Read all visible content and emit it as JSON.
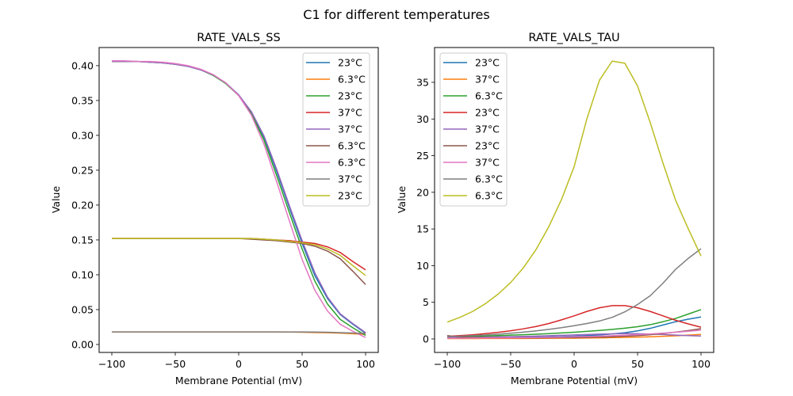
{
  "chart_data": {
    "suptitle": "C1 for different temperatures",
    "colors": [
      "#1f77b4",
      "#ff7f0e",
      "#2ca02c",
      "#d62728",
      "#9467bd",
      "#8c564b",
      "#e377c2",
      "#7f7f7f",
      "#bcbd22"
    ],
    "x": [
      -100,
      -90,
      -80,
      -70,
      -60,
      -50,
      -40,
      -30,
      -20,
      -10,
      0,
      10,
      20,
      30,
      40,
      50,
      60,
      70,
      80,
      90,
      100
    ],
    "charts": [
      {
        "type": "line",
        "title": "RATE_VALS_SS",
        "xlabel": "Membrane Potential (mV)",
        "ylabel": "Value",
        "xlim": [
          -110,
          110
        ],
        "ylim": [
          -0.0114,
          0.426
        ],
        "xticks": [
          -100,
          -50,
          0,
          50,
          100
        ],
        "xtick_labels": [
          "−100",
          "−50",
          "0",
          "50",
          "100"
        ],
        "yticks": [
          0.0,
          0.05,
          0.1,
          0.15,
          0.2,
          0.25,
          0.3,
          0.35,
          0.4
        ],
        "ytick_labels": [
          "0.00",
          "0.05",
          "0.10",
          "0.15",
          "0.20",
          "0.25",
          "0.30",
          "0.35",
          "0.40"
        ],
        "grid": false,
        "legend_position": "upper-right",
        "series": [
          {
            "name": "23°C",
            "values": [
              0.406,
              0.406,
              0.406,
              0.405,
              0.404,
              0.402,
              0.399,
              0.394,
              0.386,
              0.375,
              0.358,
              0.333,
              0.297,
              0.248,
              0.196,
              0.145,
              0.099,
              0.066,
              0.043,
              0.029,
              0.016
            ]
          },
          {
            "name": "6.3°C",
            "values": [
              0.018,
              0.018,
              0.018,
              0.018,
              0.018,
              0.018,
              0.018,
              0.018,
              0.018,
              0.018,
              0.018,
              0.018,
              0.018,
              0.018,
              0.0178,
              0.0175,
              0.0172,
              0.0168,
              0.0163,
              0.0155,
              0.0145
            ]
          },
          {
            "name": "23°C",
            "values": [
              0.406,
              0.406,
              0.406,
              0.405,
              0.404,
              0.402,
              0.399,
              0.394,
              0.386,
              0.374,
              0.357,
              0.331,
              0.293,
              0.242,
              0.189,
              0.137,
              0.091,
              0.058,
              0.036,
              0.024,
              0.013
            ]
          },
          {
            "name": "37°C",
            "values": [
              0.152,
              0.152,
              0.152,
              0.152,
              0.152,
              0.152,
              0.152,
              0.152,
              0.152,
              0.152,
              0.152,
              0.152,
              0.151,
              0.15,
              0.149,
              0.147,
              0.145,
              0.14,
              0.132,
              0.119,
              0.107
            ]
          },
          {
            "name": "37°C",
            "values": [
              0.406,
              0.406,
              0.406,
              0.405,
              0.404,
              0.402,
              0.399,
              0.394,
              0.387,
              0.375,
              0.358,
              0.334,
              0.299,
              0.251,
              0.199,
              0.149,
              0.103,
              0.068,
              0.044,
              0.03,
              0.017
            ]
          },
          {
            "name": "6.3°C",
            "values": [
              0.152,
              0.152,
              0.152,
              0.152,
              0.152,
              0.152,
              0.152,
              0.152,
              0.152,
              0.152,
              0.152,
              0.151,
              0.15,
              0.149,
              0.147,
              0.145,
              0.141,
              0.134,
              0.123,
              0.105,
              0.086
            ]
          },
          {
            "name": "6.3°C",
            "values": [
              0.407,
              0.407,
              0.406,
              0.406,
              0.405,
              0.403,
              0.4,
              0.395,
              0.387,
              0.375,
              0.357,
              0.329,
              0.287,
              0.233,
              0.177,
              0.122,
              0.078,
              0.048,
              0.029,
              0.019,
              0.01
            ]
          },
          {
            "name": "37°C",
            "values": [
              0.018,
              0.018,
              0.018,
              0.018,
              0.018,
              0.018,
              0.018,
              0.018,
              0.018,
              0.018,
              0.018,
              0.018,
              0.018,
              0.018,
              0.018,
              0.018,
              0.0178,
              0.0175,
              0.017,
              0.0165,
              0.016
            ]
          },
          {
            "name": "23°C",
            "values": [
              0.152,
              0.152,
              0.152,
              0.152,
              0.152,
              0.152,
              0.152,
              0.152,
              0.152,
              0.152,
              0.152,
              0.152,
              0.151,
              0.15,
              0.148,
              0.146,
              0.143,
              0.137,
              0.128,
              0.113,
              0.099
            ]
          }
        ]
      },
      {
        "type": "line",
        "title": "RATE_VALS_TAU",
        "xlabel": "Membrane Potential (mV)",
        "ylabel": "Value",
        "xlim": [
          -110,
          110
        ],
        "ylim": [
          -1.84,
          39.75
        ],
        "xticks": [
          -100,
          -50,
          0,
          50,
          100
        ],
        "xtick_labels": [
          "−100",
          "−50",
          "0",
          "50",
          "100"
        ],
        "yticks": [
          0,
          5,
          10,
          15,
          20,
          25,
          30,
          35
        ],
        "ytick_labels": [
          "0",
          "5",
          "10",
          "15",
          "20",
          "25",
          "30",
          "35"
        ],
        "grid": false,
        "legend_position": "upper-left",
        "series": [
          {
            "name": "23°C",
            "values": [
              0.15,
              0.16,
              0.17,
              0.18,
              0.19,
              0.2,
              0.22,
              0.25,
              0.28,
              0.32,
              0.38,
              0.45,
              0.55,
              0.68,
              0.85,
              1.1,
              1.45,
              1.9,
              2.35,
              2.7,
              3.0
            ]
          },
          {
            "name": "37°C",
            "values": [
              0.05,
              0.05,
              0.05,
              0.06,
              0.06,
              0.07,
              0.07,
              0.08,
              0.09,
              0.1,
              0.11,
              0.13,
              0.15,
              0.18,
              0.21,
              0.25,
              0.3,
              0.36,
              0.43,
              0.52,
              0.62
            ]
          },
          {
            "name": "6.3°C",
            "values": [
              0.3,
              0.33,
              0.37,
              0.41,
              0.46,
              0.52,
              0.58,
              0.65,
              0.73,
              0.82,
              0.92,
              1.03,
              1.16,
              1.3,
              1.47,
              1.67,
              1.95,
              2.35,
              2.8,
              3.4,
              4.0
            ]
          },
          {
            "name": "23°C",
            "values": [
              0.35,
              0.45,
              0.57,
              0.72,
              0.9,
              1.12,
              1.38,
              1.7,
              2.1,
              2.6,
              3.15,
              3.75,
              4.25,
              4.55,
              4.55,
              4.25,
              3.75,
              3.15,
              2.55,
              2.05,
              1.6
            ]
          },
          {
            "name": "37°C",
            "values": [
              0.18,
              0.2,
              0.22,
              0.25,
              0.28,
              0.31,
              0.35,
              0.39,
              0.44,
              0.49,
              0.55,
              0.6,
              0.66,
              0.7,
              0.72,
              0.71,
              0.67,
              0.6,
              0.52,
              0.45,
              0.4
            ]
          },
          {
            "name": "23°C",
            "values": [
              0.45,
              0.25,
              0.2,
              0.18,
              0.16,
              0.15,
              0.15,
              0.15,
              0.16,
              0.17,
              0.19,
              0.21,
              0.25,
              0.3,
              0.37,
              0.46,
              0.58,
              0.74,
              0.93,
              1.15,
              1.4
            ]
          },
          {
            "name": "37°C",
            "values": [
              0.1,
              0.11,
              0.12,
              0.13,
              0.14,
              0.15,
              0.17,
              0.19,
              0.22,
              0.25,
              0.29,
              0.33,
              0.38,
              0.44,
              0.51,
              0.59,
              0.68,
              0.79,
              0.91,
              1.05,
              1.2
            ]
          },
          {
            "name": "6.3°C",
            "values": [
              0.3,
              0.37,
              0.45,
              0.54,
              0.65,
              0.78,
              0.93,
              1.1,
              1.3,
              1.53,
              1.8,
              2.1,
              2.45,
              2.95,
              3.7,
              4.7,
              5.9,
              7.6,
              9.5,
              11.0,
              12.3
            ]
          },
          {
            "name": "6.3°C",
            "values": [
              2.3,
              2.95,
              3.75,
              4.8,
              6.1,
              7.7,
              9.7,
              12.2,
              15.3,
              19.0,
              23.5,
              30.0,
              35.3,
              37.9,
              37.6,
              34.5,
              29.5,
              24.0,
              18.9,
              15.0,
              11.3
            ]
          }
        ]
      }
    ]
  }
}
